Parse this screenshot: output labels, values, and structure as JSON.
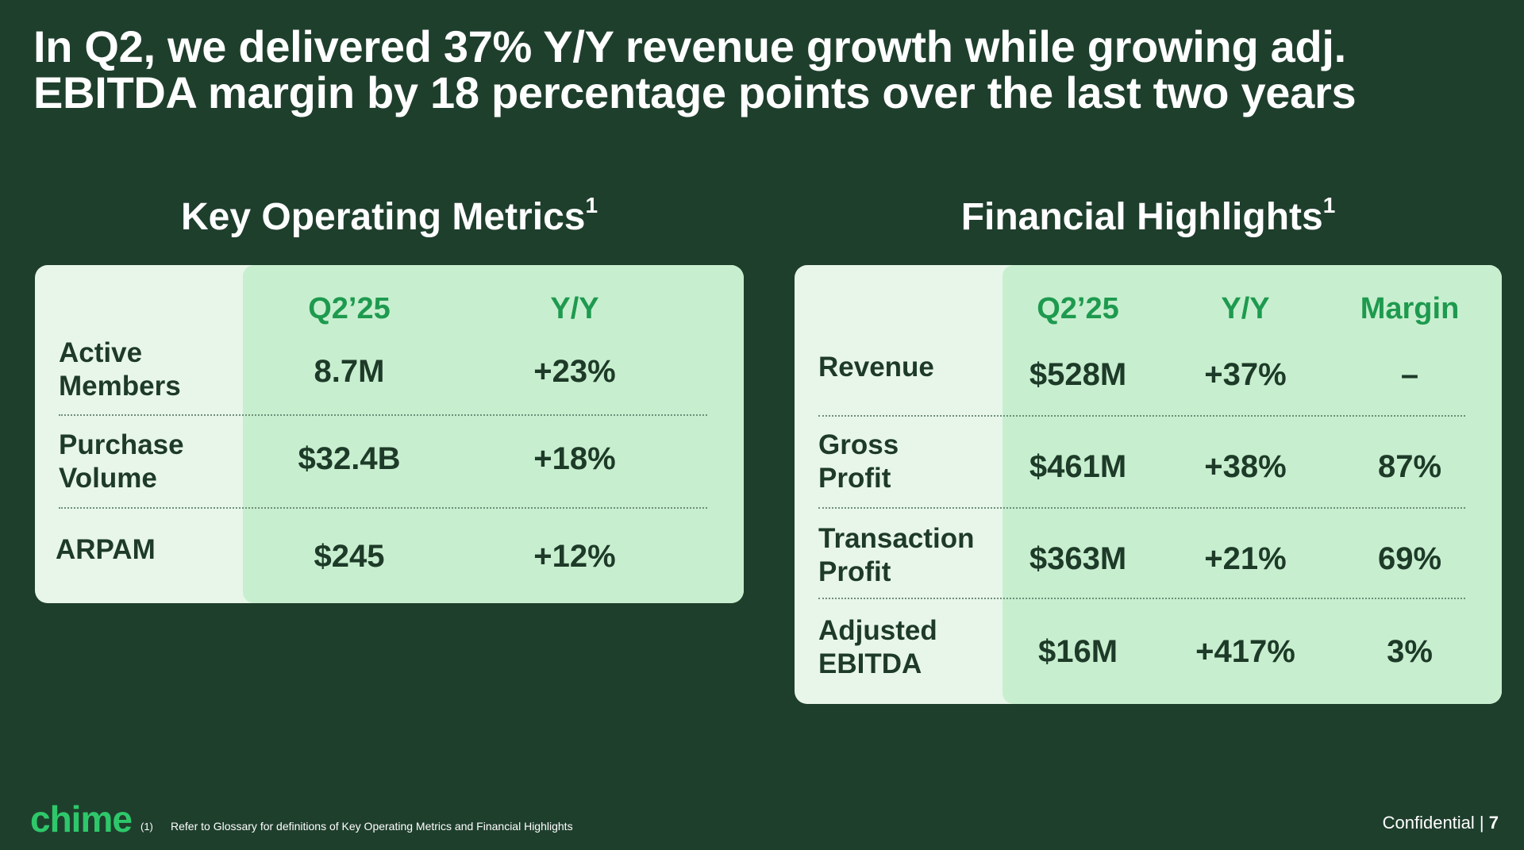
{
  "headline": {
    "line1": "In Q2, we delivered 37% Y/Y revenue growth while growing adj.",
    "line2": "EBITDA margin by 18 percentage points over the last two years"
  },
  "key_operating_metrics": {
    "title": "Key Operating Metrics",
    "footnote_marker": "1",
    "columns": [
      "Q2’25",
      "Y/Y"
    ],
    "rows": [
      {
        "label_line1": "Active",
        "label_line2": "Members",
        "q2_25": "8.7M",
        "yy": "+23%"
      },
      {
        "label_line1": "Purchase",
        "label_line2": "Volume",
        "q2_25": "$32.4B",
        "yy": "+18%"
      },
      {
        "label_line1": "ARPAM",
        "label_line2": "",
        "q2_25": "$245",
        "yy": "+12%"
      }
    ]
  },
  "financial_highlights": {
    "title": "Financial Highlights",
    "footnote_marker": "1",
    "columns": [
      "Q2’25",
      "Y/Y",
      "Margin"
    ],
    "rows": [
      {
        "label_line1": "Revenue",
        "label_line2": "",
        "q2_25": "$528M",
        "yy": "+37%",
        "margin": "–"
      },
      {
        "label_line1": "Gross",
        "label_line2": "Profit",
        "q2_25": "$461M",
        "yy": "+38%",
        "margin": "87%"
      },
      {
        "label_line1": "Transaction",
        "label_line2": "Profit",
        "q2_25": "$363M",
        "yy": "+21%",
        "margin": "69%"
      },
      {
        "label_line1": "Adjusted",
        "label_line2": "EBITDA",
        "q2_25": "$16M",
        "yy": "+417%",
        "margin": "3%"
      }
    ]
  },
  "footer": {
    "logo": "chime",
    "footnote_number": "(1)",
    "footnote_text": "Refer to Glossary for definitions of Key Operating Metrics and Financial Highlights",
    "confidential": "Confidential |",
    "page_number": "7"
  },
  "colors": {
    "background": "#1f3f2d",
    "card_light": "#e8f6ea",
    "card_highlight": "#c7efcf",
    "accent_green": "#1e9a4f",
    "logo_green": "#2ec86a"
  }
}
